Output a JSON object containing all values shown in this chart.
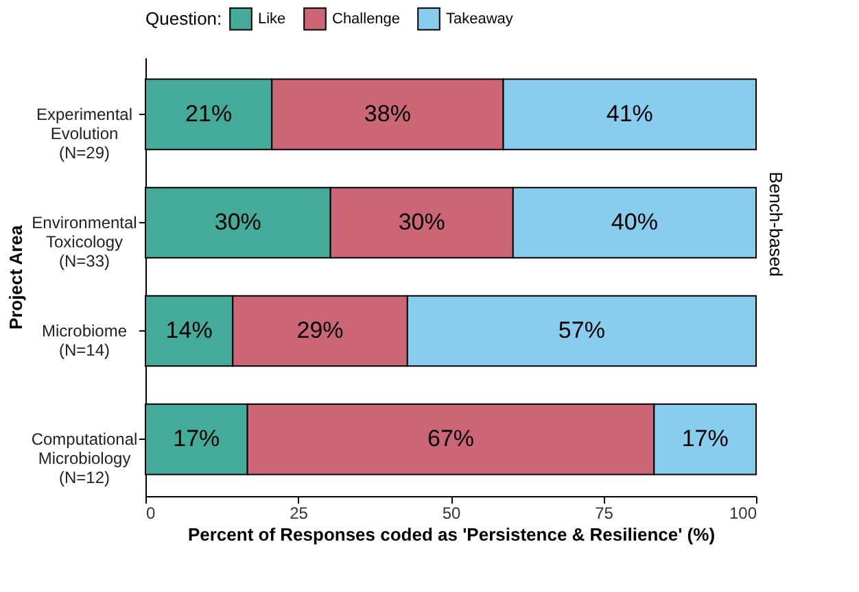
{
  "chart_data": {
    "type": "bar",
    "orientation": "horizontal",
    "stacked": true,
    "categories": [
      "Experimental\nEvolution\n(N=29)",
      "Environmental\nToxicology\n(N=33)",
      "Microbiome\n(N=14)",
      "Computational\nMicrobiology\n(N=12)"
    ],
    "series": [
      {
        "name": "Like",
        "color": "#44aa99",
        "values": [
          20.7,
          30.3,
          14.3,
          16.7
        ],
        "value_labels": [
          "21%",
          "30%",
          "14%",
          "17%"
        ]
      },
      {
        "name": "Challenge",
        "color": "#cc6677",
        "values": [
          37.9,
          29.9,
          28.6,
          66.6
        ],
        "value_labels": [
          "38%",
          "30%",
          "29%",
          "67%"
        ]
      },
      {
        "name": "Takeaway",
        "color": "#88ccee",
        "values": [
          41.4,
          39.8,
          57.1,
          16.7
        ],
        "value_labels": [
          "41%",
          "40%",
          "57%",
          "17%"
        ]
      }
    ],
    "xlabel": "Percent of Responses coded as 'Persistence & Resilience' (%)",
    "ylabel": "Project Area",
    "legend_title": "Question:",
    "xlim": [
      0,
      100
    ],
    "xticks": [
      0,
      25,
      50,
      75,
      100
    ],
    "grid": false,
    "legend": "top",
    "annotations": [
      "Bench-based"
    ]
  }
}
